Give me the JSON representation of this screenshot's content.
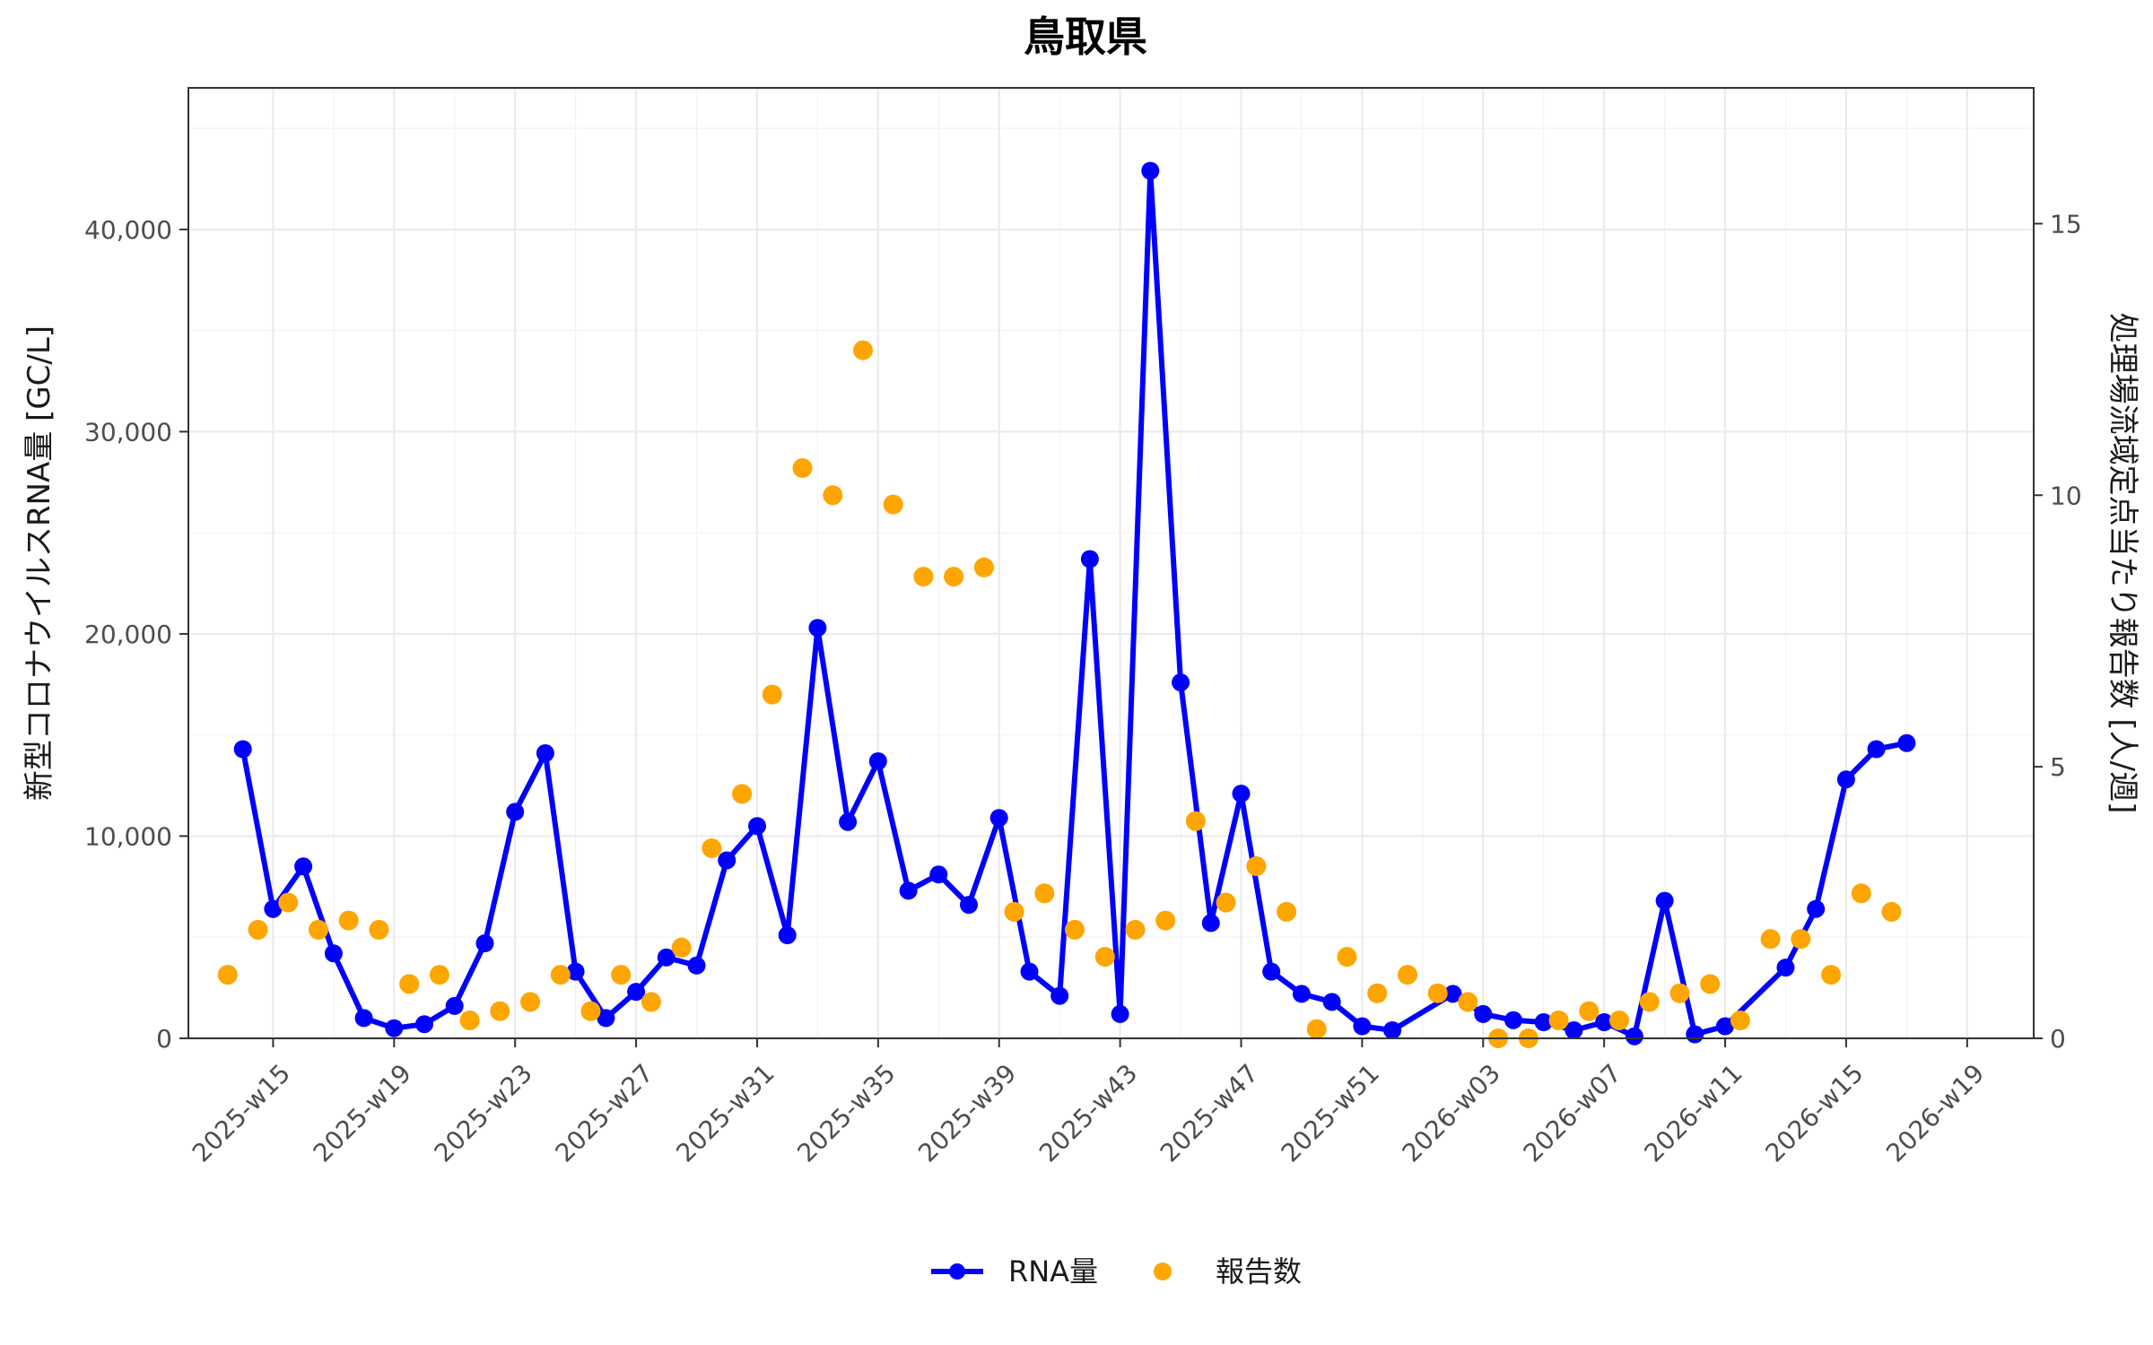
{
  "chart_data": {
    "type": "line",
    "title": "鳥取県",
    "ylabel_left": "新型コロナウイルスRNA量 [GC/L]",
    "ylabel_right": "処理場流域定点当たり報告数 [人/週]",
    "xlabel": "",
    "x_tick_labels": [
      "2025-w15",
      "2025-w19",
      "2025-w23",
      "2025-w27",
      "2025-w31",
      "2025-w35",
      "2025-w39",
      "2025-w43",
      "2025-w47",
      "2025-w51",
      "2026-w03",
      "2026-w07",
      "2026-w11",
      "2026-w15",
      "2026-w19"
    ],
    "x_tick_weeks": [
      16,
      20,
      24,
      28,
      32,
      36,
      40,
      44,
      48,
      52,
      56,
      60,
      64,
      68,
      72
    ],
    "x_range": [
      13.2,
      74.2
    ],
    "y_left_range": [
      0,
      47000
    ],
    "y_left_ticks": [
      0,
      10000,
      20000,
      30000,
      40000
    ],
    "y_left_tick_labels": [
      "0",
      "10,000",
      "20,000",
      "30,000",
      "40,000"
    ],
    "y_right_range": [
      0,
      17.5
    ],
    "y_right_ticks": [
      0,
      5,
      10,
      15
    ],
    "y_right_tick_labels": [
      "0",
      "5",
      "10",
      "15"
    ],
    "grid": true,
    "legend_position": "bottom",
    "series": [
      {
        "name": "RNA量",
        "axis": "left",
        "type": "line",
        "color": "#0000ff",
        "points": [
          [
            15.0,
            14300
          ],
          [
            16.0,
            6400
          ],
          [
            17.0,
            8500
          ],
          [
            18.0,
            4200
          ],
          [
            19.0,
            1000
          ],
          [
            20.0,
            500
          ],
          [
            21.0,
            700
          ],
          [
            22.0,
            1600
          ],
          [
            23.0,
            4700
          ],
          [
            24.0,
            11200
          ],
          [
            25.0,
            14100
          ],
          [
            26.0,
            3300
          ],
          [
            27.0,
            1000
          ],
          [
            28.0,
            2300
          ],
          [
            29.0,
            4000
          ],
          [
            30.0,
            3600
          ],
          [
            31.0,
            8800
          ],
          [
            32.0,
            10500
          ],
          [
            33.0,
            5100
          ],
          [
            34.0,
            20300
          ],
          [
            35.0,
            10700
          ],
          [
            36.0,
            13700
          ],
          [
            37.0,
            7300
          ],
          [
            38.0,
            8100
          ],
          [
            39.0,
            6600
          ],
          [
            40.0,
            10900
          ],
          [
            41.0,
            3300
          ],
          [
            42.0,
            2100
          ],
          [
            43.0,
            23700
          ],
          [
            44.0,
            1200
          ],
          [
            45.0,
            42900
          ],
          [
            46.0,
            17600
          ],
          [
            47.0,
            5700
          ],
          [
            48.0,
            12100
          ],
          [
            49.0,
            3300
          ],
          [
            50.0,
            2200
          ],
          [
            51.0,
            1800
          ],
          [
            52.0,
            600
          ],
          [
            53.0,
            400
          ],
          [
            55.0,
            2200
          ],
          [
            56.0,
            1200
          ],
          [
            57.0,
            900
          ],
          [
            58.0,
            800
          ],
          [
            59.0,
            400
          ],
          [
            60.0,
            800
          ],
          [
            61.0,
            100
          ],
          [
            62.0,
            6800
          ],
          [
            63.0,
            200
          ],
          [
            64.0,
            600
          ],
          [
            66.0,
            3500
          ],
          [
            67.0,
            6400
          ],
          [
            68.0,
            12800
          ],
          [
            69.0,
            14300
          ],
          [
            70.0,
            14600
          ]
        ]
      },
      {
        "name": "報告数",
        "axis": "right",
        "type": "scatter",
        "color": "#ffa500",
        "points": [
          [
            14.5,
            1.17
          ],
          [
            15.5,
            2.0
          ],
          [
            16.5,
            2.5
          ],
          [
            17.5,
            2.0
          ],
          [
            18.5,
            2.17
          ],
          [
            19.5,
            2.0
          ],
          [
            20.5,
            1.0
          ],
          [
            21.5,
            1.17
          ],
          [
            22.5,
            0.33
          ],
          [
            23.5,
            0.5
          ],
          [
            24.5,
            0.67
          ],
          [
            25.5,
            1.17
          ],
          [
            26.5,
            0.5
          ],
          [
            27.5,
            1.17
          ],
          [
            28.5,
            0.67
          ],
          [
            29.5,
            1.67
          ],
          [
            30.5,
            3.5
          ],
          [
            31.5,
            4.5
          ],
          [
            32.5,
            6.33
          ],
          [
            33.5,
            10.5
          ],
          [
            34.5,
            10.0
          ],
          [
            35.5,
            12.67
          ],
          [
            36.5,
            9.83
          ],
          [
            37.5,
            8.5
          ],
          [
            38.5,
            8.5
          ],
          [
            39.5,
            8.67
          ],
          [
            40.5,
            2.33
          ],
          [
            41.5,
            2.67
          ],
          [
            42.5,
            2.0
          ],
          [
            43.5,
            1.5
          ],
          [
            44.5,
            2.0
          ],
          [
            45.5,
            2.17
          ],
          [
            46.5,
            4.0
          ],
          [
            47.5,
            2.5
          ],
          [
            48.5,
            3.17
          ],
          [
            49.5,
            2.33
          ],
          [
            50.5,
            0.17
          ],
          [
            51.5,
            1.5
          ],
          [
            52.5,
            0.83
          ],
          [
            53.5,
            1.17
          ],
          [
            54.5,
            0.83
          ],
          [
            55.5,
            0.67
          ],
          [
            56.5,
            0.0
          ],
          [
            57.5,
            0.0
          ],
          [
            58.5,
            0.33
          ],
          [
            59.5,
            0.5
          ],
          [
            60.5,
            0.33
          ],
          [
            61.5,
            0.67
          ],
          [
            62.5,
            0.83
          ],
          [
            63.5,
            1.0
          ],
          [
            64.5,
            0.33
          ],
          [
            65.5,
            1.83
          ],
          [
            66.5,
            1.83
          ],
          [
            67.5,
            1.17
          ],
          [
            68.5,
            2.67
          ],
          [
            69.5,
            2.33
          ]
        ]
      }
    ]
  }
}
